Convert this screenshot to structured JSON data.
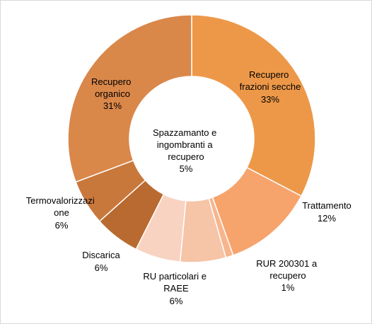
{
  "chart_data": {
    "type": "pie",
    "variant": "doughnut",
    "start_angle_deg": 0,
    "direction": "clockwise",
    "slices": [
      {
        "label": "Recupero frazioni secche",
        "value": 33,
        "value_label": "33%",
        "color": "#ED9849"
      },
      {
        "label": "Trattamento",
        "value": 12,
        "value_label": "12%",
        "color": "#F6A36C"
      },
      {
        "label": "RUR 200301 a recupero",
        "value": 1,
        "value_label": "1%",
        "color": "#F8B58D"
      },
      {
        "label": "",
        "value": 6,
        "value_label": "",
        "color": "#F6C4A7"
      },
      {
        "label": "RU particolari e RAEE",
        "value": 6,
        "value_label": "6%",
        "color": "#F8D3C2"
      },
      {
        "label": "Discarica",
        "value": 6,
        "value_label": "6%",
        "color": "#B86A30"
      },
      {
        "label": "Termovalorizzazione",
        "value": 6,
        "value_label": "6%",
        "color": "#C9783C"
      },
      {
        "label": "Recupero organico",
        "value": 31,
        "value_label": "31%",
        "color": "#DA874A"
      }
    ],
    "center_label": "Spazzamanto e ingombranti a recupero",
    "center_value_label": "5%"
  }
}
